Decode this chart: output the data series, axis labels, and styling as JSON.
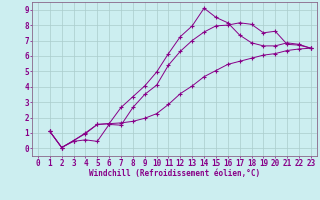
{
  "xlabel": "Windchill (Refroidissement éolien,°C)",
  "background_color": "#cceef0",
  "grid_color": "#aacccc",
  "line_color": "#880088",
  "spine_color": "#886688",
  "xlim": [
    -0.5,
    23.5
  ],
  "ylim": [
    -0.5,
    9.5
  ],
  "xticks": [
    0,
    1,
    2,
    3,
    4,
    5,
    6,
    7,
    8,
    9,
    10,
    11,
    12,
    13,
    14,
    15,
    16,
    17,
    18,
    19,
    20,
    21,
    22,
    23
  ],
  "yticks": [
    0,
    1,
    2,
    3,
    4,
    5,
    6,
    7,
    8,
    9
  ],
  "line1_x": [
    1,
    2,
    3,
    4,
    5,
    6,
    7,
    8,
    9,
    10,
    11,
    12,
    13,
    14,
    15,
    16,
    17,
    18,
    19,
    20,
    21,
    22,
    23
  ],
  "line1_y": [
    1.1,
    0.05,
    0.45,
    0.55,
    0.45,
    1.55,
    1.5,
    2.65,
    3.5,
    4.1,
    5.4,
    6.3,
    7.0,
    7.55,
    7.95,
    8.0,
    8.15,
    8.05,
    7.5,
    7.6,
    6.75,
    6.7,
    6.5
  ],
  "line2_x": [
    1,
    2,
    3,
    4,
    5,
    6,
    7,
    8,
    9,
    10,
    11,
    12,
    13,
    14,
    15,
    16,
    17,
    18,
    19,
    20,
    21,
    22,
    23
  ],
  "line2_y": [
    1.1,
    0.05,
    0.5,
    1.0,
    1.55,
    1.6,
    2.65,
    3.35,
    4.05,
    4.95,
    6.15,
    7.25,
    7.95,
    9.1,
    8.5,
    8.15,
    7.35,
    6.85,
    6.65,
    6.65,
    6.85,
    6.75,
    6.5
  ],
  "line3_x": [
    1,
    2,
    3,
    4,
    5,
    6,
    7,
    8,
    9,
    10,
    11,
    12,
    13,
    14,
    15,
    16,
    17,
    18,
    19,
    20,
    21,
    22,
    23
  ],
  "line3_y": [
    1.1,
    0.05,
    0.5,
    0.95,
    1.55,
    1.6,
    1.65,
    1.75,
    1.95,
    2.25,
    2.85,
    3.55,
    4.05,
    4.65,
    5.05,
    5.45,
    5.65,
    5.85,
    6.05,
    6.15,
    6.35,
    6.45,
    6.5
  ],
  "tick_fontsize": 5.5,
  "xlabel_fontsize": 5.5
}
